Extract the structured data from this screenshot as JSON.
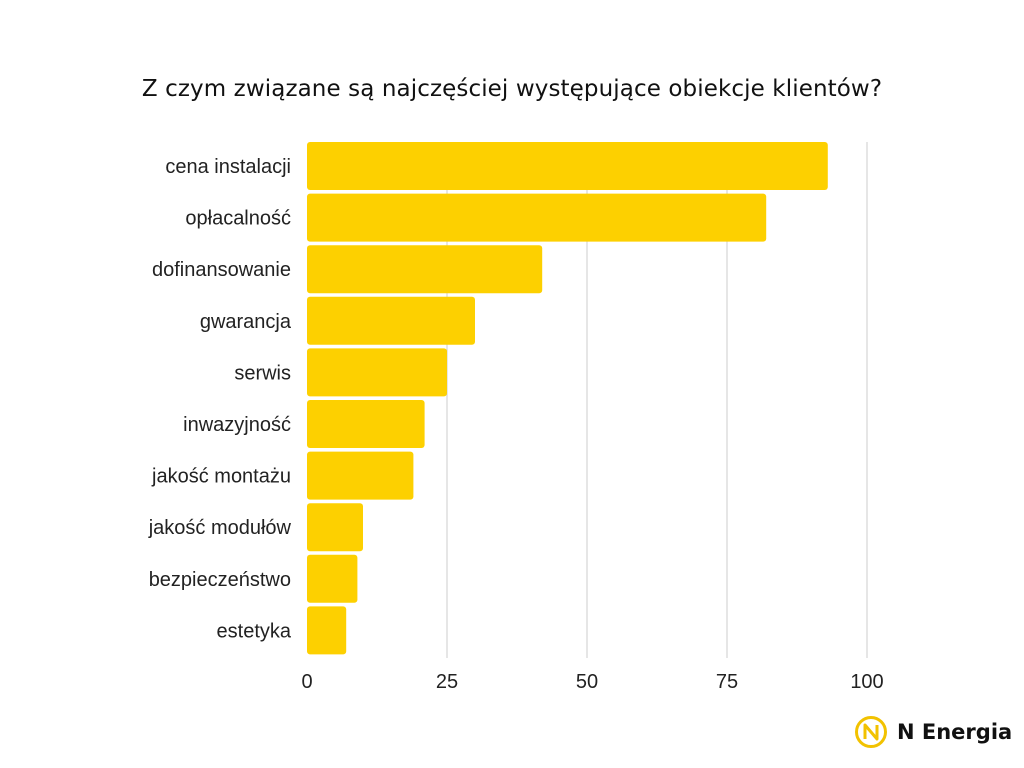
{
  "chart_data": {
    "type": "bar",
    "orientation": "horizontal",
    "title": "Z czym związane są najczęściej występujące obiekcje klientów?",
    "categories": [
      "cena instalacji",
      "opłacalność",
      "dofinansowanie",
      "gwarancja",
      "serwis",
      "inwazyjność",
      "jakość montażu",
      "jakość modułów",
      "bezpieczeństwo",
      "estetyka"
    ],
    "values": [
      93,
      82,
      42,
      30,
      25,
      21,
      19,
      10,
      9,
      7
    ],
    "xticks": [
      "0",
      "25",
      "50",
      "75",
      "100"
    ],
    "xlim": [
      0,
      100
    ],
    "grid": "vertical",
    "bar_color": "#fdd000",
    "grid_color": "#cccccc"
  },
  "brand": {
    "name": "N Energia",
    "icon": "n-energia-logo-icon",
    "color": "#f2c200"
  }
}
